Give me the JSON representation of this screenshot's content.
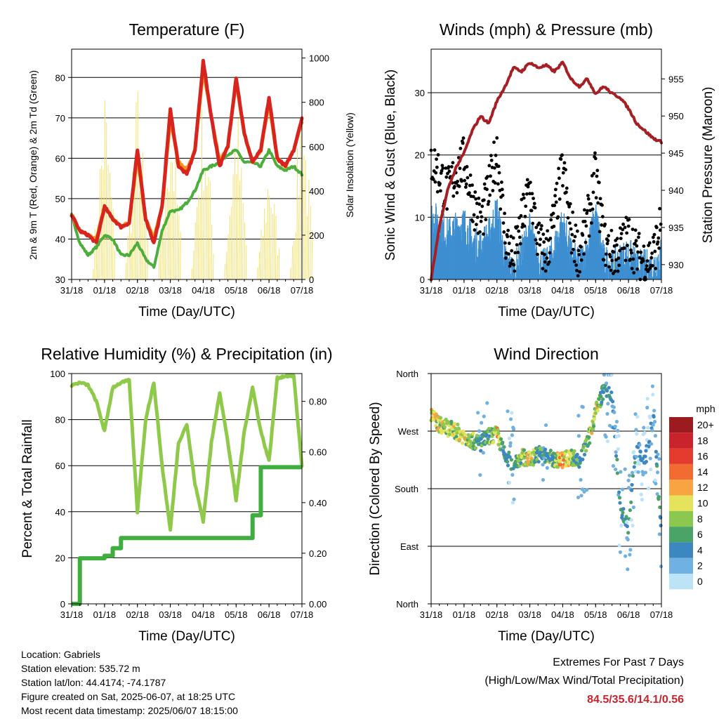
{
  "time_ticks": [
    "31/18",
    "01/18",
    "02/18",
    "03/18",
    "04/18",
    "05/18",
    "06/18",
    "07/18"
  ],
  "time_label": "Time (Day/UTC)",
  "charts": {
    "temperature": {
      "title": "Temperature (F)",
      "ylabel_left": "2m & 9m T (Red, Orange) & 2m Td (Green)",
      "ylabel_right": "Solar Insolation (Yellow)",
      "left_ticks": [
        "30",
        "40",
        "50",
        "60",
        "70",
        "80"
      ],
      "right_ticks": [
        "0",
        "200",
        "400",
        "600",
        "800",
        "1000"
      ]
    },
    "winds": {
      "title": "Winds (mph) & Pressure (mb)",
      "ylabel_left": "Sonic Wind & Gust (Blue, Black)",
      "ylabel_right": "Station Pressure (Maroon)",
      "left_ticks": [
        "0",
        "10",
        "20",
        "30"
      ],
      "right_ticks": [
        "930",
        "935",
        "940",
        "945",
        "950",
        "955"
      ]
    },
    "humidity": {
      "title": "Relative Humidity (%) & Precipitation (in)",
      "ylabel_left": "Percent & Total Rainfall",
      "left_ticks": [
        "0",
        "20",
        "40",
        "60",
        "80",
        "100"
      ],
      "right_ticks": [
        "0.00",
        "0.20",
        "0.40",
        "0.60",
        "0.80"
      ]
    },
    "direction": {
      "title": "Wind Direction",
      "ylabel_left": "Direction (Colored By Speed)",
      "left_ticks": [
        "North",
        "East",
        "South",
        "West",
        "North"
      ],
      "legend_title": "mph",
      "legend_labels": [
        "20+",
        "18",
        "16",
        "14",
        "12",
        "10",
        "8",
        "6",
        "4",
        "2",
        "0"
      ],
      "legend_colors": [
        "#9b1b1f",
        "#c9242b",
        "#e33b2e",
        "#f26b30",
        "#f8a443",
        "#e5e25b",
        "#8cc750",
        "#4aa367",
        "#3c87c2",
        "#6fb1e2",
        "#bde3f7"
      ]
    }
  },
  "chart_data": [
    {
      "type": "line",
      "title": "Temperature (F)",
      "x": [
        "31/18",
        "01/00",
        "01/06",
        "01/12",
        "01/18",
        "02/00",
        "02/06",
        "02/12",
        "02/18",
        "03/00",
        "03/06",
        "03/12",
        "03/18",
        "04/00",
        "04/06",
        "04/12",
        "04/18",
        "05/00",
        "05/06",
        "05/12",
        "05/18",
        "06/00",
        "06/06",
        "06/12",
        "06/18",
        "07/00",
        "07/06",
        "07/12",
        "07/18"
      ],
      "series": [
        {
          "name": "2m T",
          "color": "#d8241f",
          "values": [
            46,
            42,
            41,
            39,
            48,
            45,
            43,
            44,
            62,
            45,
            39,
            48,
            72,
            58,
            56,
            62,
            84,
            70,
            58,
            63,
            80,
            66,
            59,
            62,
            75,
            60,
            58,
            62,
            70
          ]
        },
        {
          "name": "9m T",
          "color": "#f7941d",
          "values": [
            46,
            42,
            41,
            40,
            48,
            45,
            43,
            44,
            61,
            45,
            40,
            48,
            70,
            59,
            57,
            62,
            82,
            70,
            59,
            63,
            79,
            66,
            59,
            62,
            74,
            60,
            58,
            62,
            69
          ]
        },
        {
          "name": "2m Td",
          "color": "#4cae3c",
          "values": [
            46,
            39,
            36,
            38,
            41,
            40,
            36,
            36,
            39,
            35,
            33,
            42,
            47,
            47,
            49,
            52,
            57,
            58,
            59,
            61,
            62,
            59,
            59,
            58,
            62,
            58,
            57,
            58,
            56
          ]
        },
        {
          "name": "Solar Insolation",
          "color": "#f7e06a",
          "axis": "right",
          "values": [
            60,
            0,
            0,
            0,
            950,
            0,
            0,
            0,
            960,
            0,
            0,
            0,
            920,
            0,
            0,
            0,
            930,
            0,
            0,
            0,
            880,
            0,
            0,
            0,
            620,
            0,
            0,
            0,
            950
          ]
        }
      ],
      "ylim": [
        30,
        87
      ],
      "ylim_right": [
        0,
        1040
      ],
      "grid": true
    },
    {
      "type": "scatter",
      "title": "Winds (mph) & Pressure (mb)",
      "x": [
        "31/18",
        "01/00",
        "01/06",
        "01/12",
        "01/18",
        "02/00",
        "02/06",
        "02/12",
        "02/18",
        "03/00",
        "03/06",
        "03/12",
        "03/18",
        "04/00",
        "04/06",
        "04/12",
        "04/18",
        "05/00",
        "05/06",
        "05/12",
        "05/18",
        "06/00",
        "06/06",
        "06/12",
        "06/18",
        "07/00",
        "07/06",
        "07/12",
        "07/18"
      ],
      "series": [
        {
          "name": "Sonic Wind",
          "color": "#3d8fd1",
          "values": [
            10,
            9,
            7,
            8,
            9,
            6,
            5,
            7,
            11,
            3,
            1,
            4,
            8,
            3,
            2,
            5,
            9,
            4,
            2,
            5,
            10,
            3,
            2,
            3,
            4,
            2,
            2,
            2,
            4
          ]
        },
        {
          "name": "Gust",
          "color": "#000000",
          "values": [
            19,
            17,
            14,
            17,
            19,
            13,
            9,
            14,
            21,
            7,
            3,
            9,
            15,
            6,
            4,
            10,
            18,
            8,
            4,
            9,
            17,
            6,
            4,
            5,
            7,
            4,
            3,
            4,
            9
          ]
        },
        {
          "name": "Station Pressure",
          "color": "#a51f24",
          "axis": "right",
          "values": [
            928,
            935,
            940,
            943,
            945,
            948,
            950,
            949,
            952,
            954,
            956.5,
            956,
            957.2,
            956.5,
            956.8,
            956,
            957.2,
            955,
            954,
            955,
            953,
            954,
            953,
            952.5,
            951,
            949,
            948,
            947,
            946.5
          ]
        }
      ],
      "ylim": [
        0,
        37
      ],
      "ylim_right": [
        928,
        959
      ],
      "grid": true
    },
    {
      "type": "line",
      "title": "Relative Humidity (%) & Precipitation (in)",
      "x": [
        "31/18",
        "01/00",
        "01/06",
        "01/12",
        "01/18",
        "02/00",
        "02/06",
        "02/12",
        "02/18",
        "03/00",
        "03/06",
        "03/12",
        "03/18",
        "04/00",
        "04/06",
        "04/12",
        "04/18",
        "05/00",
        "05/06",
        "05/12",
        "05/18",
        "06/00",
        "06/06",
        "06/12",
        "06/18",
        "07/00",
        "07/06",
        "07/12",
        "07/18"
      ],
      "series": [
        {
          "name": "Relative Humidity",
          "color": "#8fc94a",
          "values": [
            95,
            96,
            95,
            88,
            75,
            94,
            96,
            97,
            40,
            80,
            96,
            60,
            32,
            70,
            78,
            52,
            36,
            70,
            92,
            70,
            45,
            75,
            94,
            75,
            62,
            98,
            99,
            99,
            60
          ]
        },
        {
          "name": "Total Rainfall",
          "color": "#3fae3f",
          "axis": "right",
          "values": [
            0,
            0.18,
            0.18,
            0.18,
            0.19,
            0.22,
            0.26,
            0.26,
            0.26,
            0.26,
            0.26,
            0.26,
            0.26,
            0.26,
            0.26,
            0.26,
            0.26,
            0.26,
            0.26,
            0.26,
            0.26,
            0.26,
            0.35,
            0.54,
            0.54,
            0.54,
            0.54,
            0.54,
            0.54
          ]
        }
      ],
      "ylim": [
        0,
        100
      ],
      "ylim_right": [
        0,
        0.91
      ],
      "grid": true
    },
    {
      "type": "scatter",
      "title": "Wind Direction",
      "x": [
        "31/18",
        "01/00",
        "01/06",
        "01/12",
        "01/18",
        "02/00",
        "02/06",
        "02/12",
        "02/18",
        "03/00",
        "03/06",
        "03/12",
        "03/18",
        "04/00",
        "04/06",
        "04/12",
        "04/18",
        "05/00",
        "05/06",
        "05/12",
        "05/18",
        "06/00",
        "06/06",
        "06/12",
        "06/18",
        "07/00",
        "07/06",
        "07/12",
        "07/18"
      ],
      "direction_deg": [
        295,
        280,
        275,
        270,
        262,
        255,
        250,
        262,
        265,
        230,
        220,
        230,
        225,
        235,
        230,
        225,
        225,
        230,
        225,
        250,
        300,
        335,
        320,
        150,
        120,
        250,
        220,
        300,
        110
      ],
      "speed": [
        10,
        9,
        8,
        9,
        10,
        8,
        4,
        6,
        11,
        4,
        3,
        8,
        10,
        6,
        4,
        8,
        12,
        8,
        4,
        6,
        10,
        4,
        2,
        3,
        4,
        2,
        2,
        2,
        4
      ],
      "y_categories": [
        "North",
        "East",
        "South",
        "West",
        "North"
      ],
      "ylim": [
        0,
        360
      ],
      "grid": true,
      "legend": "right"
    }
  ],
  "footer": {
    "location": "Location: Gabriels",
    "elevation": "Station elevation: 535.72 m",
    "latlon": "Station lat/lon: 44.4174; -74.1787",
    "created": "Figure created on Sat, 2025-06-07, at 18:25 UTC",
    "recent": "Most recent data timestamp: 2025/06/07 18:15:00",
    "extremes_title": "Extremes For Past 7 Days",
    "extremes_subtitle": "(High/Low/Max Wind/Total Precipitation)",
    "extremes_values": "84.5/35.6/14.1/0.56",
    "extremes_color": "#c9242b"
  }
}
